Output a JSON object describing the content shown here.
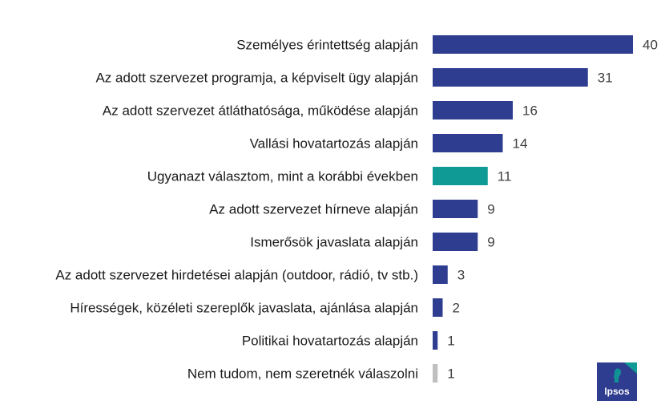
{
  "chart_data": {
    "type": "bar",
    "orientation": "horizontal",
    "categories": [
      "Személyes érintettség alapján",
      "Az adott szervezet programja, a képviselt ügy alapján",
      "Az adott szervezet átláthatósága, működése alapján",
      "Vallási hovatartozás alapján",
      "Ugyanazt választom, mint a korábbi években",
      "Az adott szervezet hírneve alapján",
      "Ismerősök javaslata alapján",
      "Az adott szervezet hirdetései alapján (outdoor, rádió, tv stb.)",
      "Hírességek, közéleti szereplők javaslata, ajánlása alapján",
      "Politikai hovatartozás alapján",
      "Nem tudom, nem szeretnék válaszolni"
    ],
    "values": [
      40,
      31,
      16,
      14,
      11,
      9,
      9,
      3,
      2,
      1,
      1
    ],
    "value_labels": [
      "40",
      "31",
      "16",
      "14",
      "11",
      "9",
      "9",
      "3",
      "2",
      "1",
      "1"
    ],
    "bar_colors": [
      "#2e3d8f",
      "#2e3d8f",
      "#2e3d8f",
      "#2e3d8f",
      "#0f9a96",
      "#2e3d8f",
      "#2e3d8f",
      "#2e3d8f",
      "#2e3d8f",
      "#2e3d8f",
      "#bfbfbf"
    ],
    "xlim": [
      0,
      40
    ],
    "grid": false,
    "legend": "none"
  },
  "logo": {
    "text": "Ipsos",
    "colors": {
      "navy": "#2e3d8f",
      "teal": "#0f9a96"
    }
  }
}
